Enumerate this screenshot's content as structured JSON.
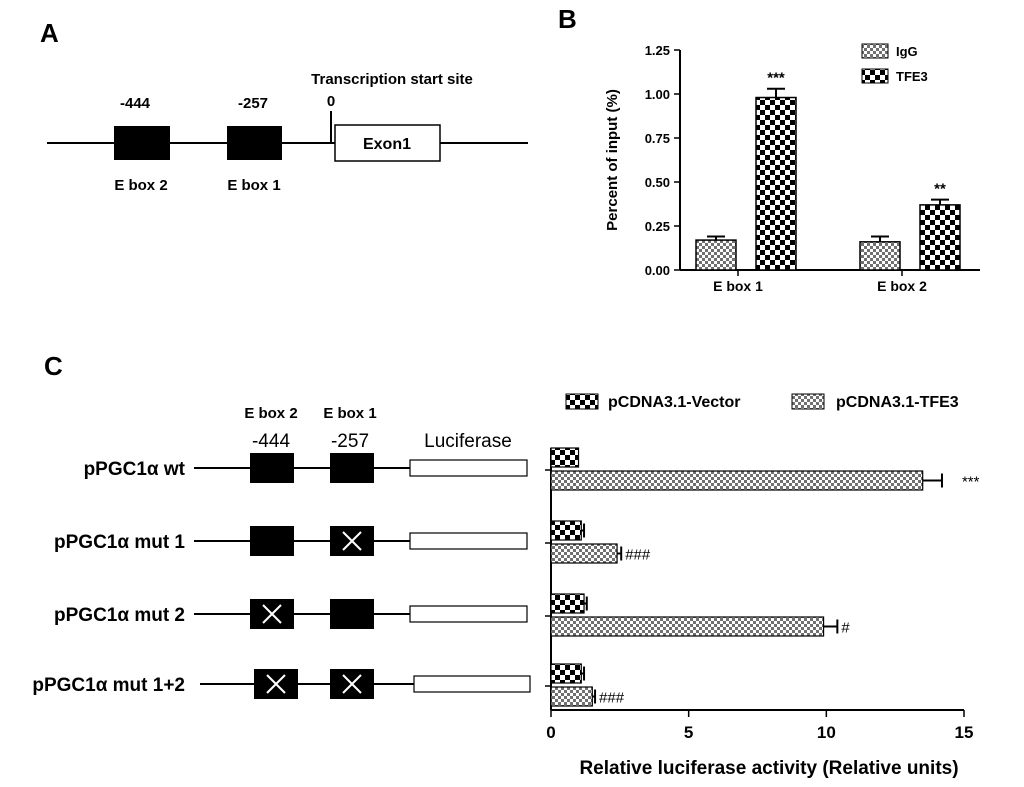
{
  "colors": {
    "bar_fill": "#000000",
    "pattern_dark": "#707070",
    "background": "#ffffff",
    "exon_fill": "#ffffff"
  },
  "panelA": {
    "panel_label": "A",
    "tss_label": "Transcription start site",
    "tss_pos": "0",
    "exon_label": "Exon1",
    "boxes": [
      {
        "pos": "-444",
        "name": "E box 2"
      },
      {
        "pos": "-257",
        "name": "E box 1"
      }
    ]
  },
  "panelC_map": {
    "panel_label": "C",
    "ebox_labels": [
      "E box 2",
      "E box 1"
    ],
    "pos_labels": [
      "-444",
      "-257"
    ],
    "luciferase_label": "Luciferase",
    "constructs": [
      {
        "name": "pPGC1α wt",
        "mut_ebox2": false,
        "mut_ebox1": false
      },
      {
        "name": "pPGC1α mut 1",
        "mut_ebox2": false,
        "mut_ebox1": true
      },
      {
        "name": "pPGC1α mut 2",
        "mut_ebox2": true,
        "mut_ebox1": false
      },
      {
        "name": "pPGC1α mut 1+2",
        "mut_ebox2": true,
        "mut_ebox1": true
      }
    ]
  },
  "chart_data": [
    {
      "id": "B",
      "panel_label": "B",
      "type": "bar",
      "orientation": "vertical",
      "categories": [
        "E box 1",
        "E box 2"
      ],
      "series": [
        {
          "name": "IgG",
          "pattern": "fine-check",
          "values": [
            0.17,
            0.16
          ],
          "errors": [
            0.02,
            0.03
          ]
        },
        {
          "name": "TFE3",
          "pattern": "coarse-check",
          "values": [
            0.98,
            0.37
          ],
          "errors": [
            0.05,
            0.03
          ]
        }
      ],
      "annotations": [
        {
          "series": 1,
          "category": 0,
          "text": "***"
        },
        {
          "series": 1,
          "category": 1,
          "text": "**"
        }
      ],
      "ylabel": "Percent of input (%)",
      "xlabel": "",
      "ylim": [
        0,
        1.25
      ],
      "yticks": [
        "0.00",
        "0.25",
        "0.50",
        "0.75",
        "1.00",
        "1.25"
      ],
      "legend_position": "top-right"
    },
    {
      "id": "C",
      "type": "bar",
      "orientation": "horizontal",
      "categories": [
        "pPGC1α wt",
        "pPGC1α mut 1",
        "pPGC1α mut 2",
        "pPGC1α mut 1+2"
      ],
      "series": [
        {
          "name": "pCDNA3.1-Vector",
          "pattern": "coarse-check",
          "values": [
            1.0,
            1.1,
            1.2,
            1.1
          ],
          "errors": [
            0.0,
            0.1,
            0.1,
            0.1
          ]
        },
        {
          "name": "pCDNA3.1-TFE3",
          "pattern": "fine-check",
          "values": [
            13.5,
            2.4,
            9.9,
            1.5
          ],
          "errors": [
            0.7,
            0.15,
            0.5,
            0.1
          ]
        }
      ],
      "annotations": [
        {
          "series": 1,
          "category": 0,
          "text": "***"
        },
        {
          "series": 1,
          "category": 1,
          "text": "###"
        },
        {
          "series": 1,
          "category": 2,
          "text": "#"
        },
        {
          "series": 1,
          "category": 3,
          "text": "###"
        }
      ],
      "xlabel": "Relative luciferase activity (Relative units)",
      "ylabel": "",
      "xlim": [
        0,
        15
      ],
      "xticks": [
        "0",
        "5",
        "10",
        "15"
      ],
      "legend_position": "top"
    }
  ]
}
